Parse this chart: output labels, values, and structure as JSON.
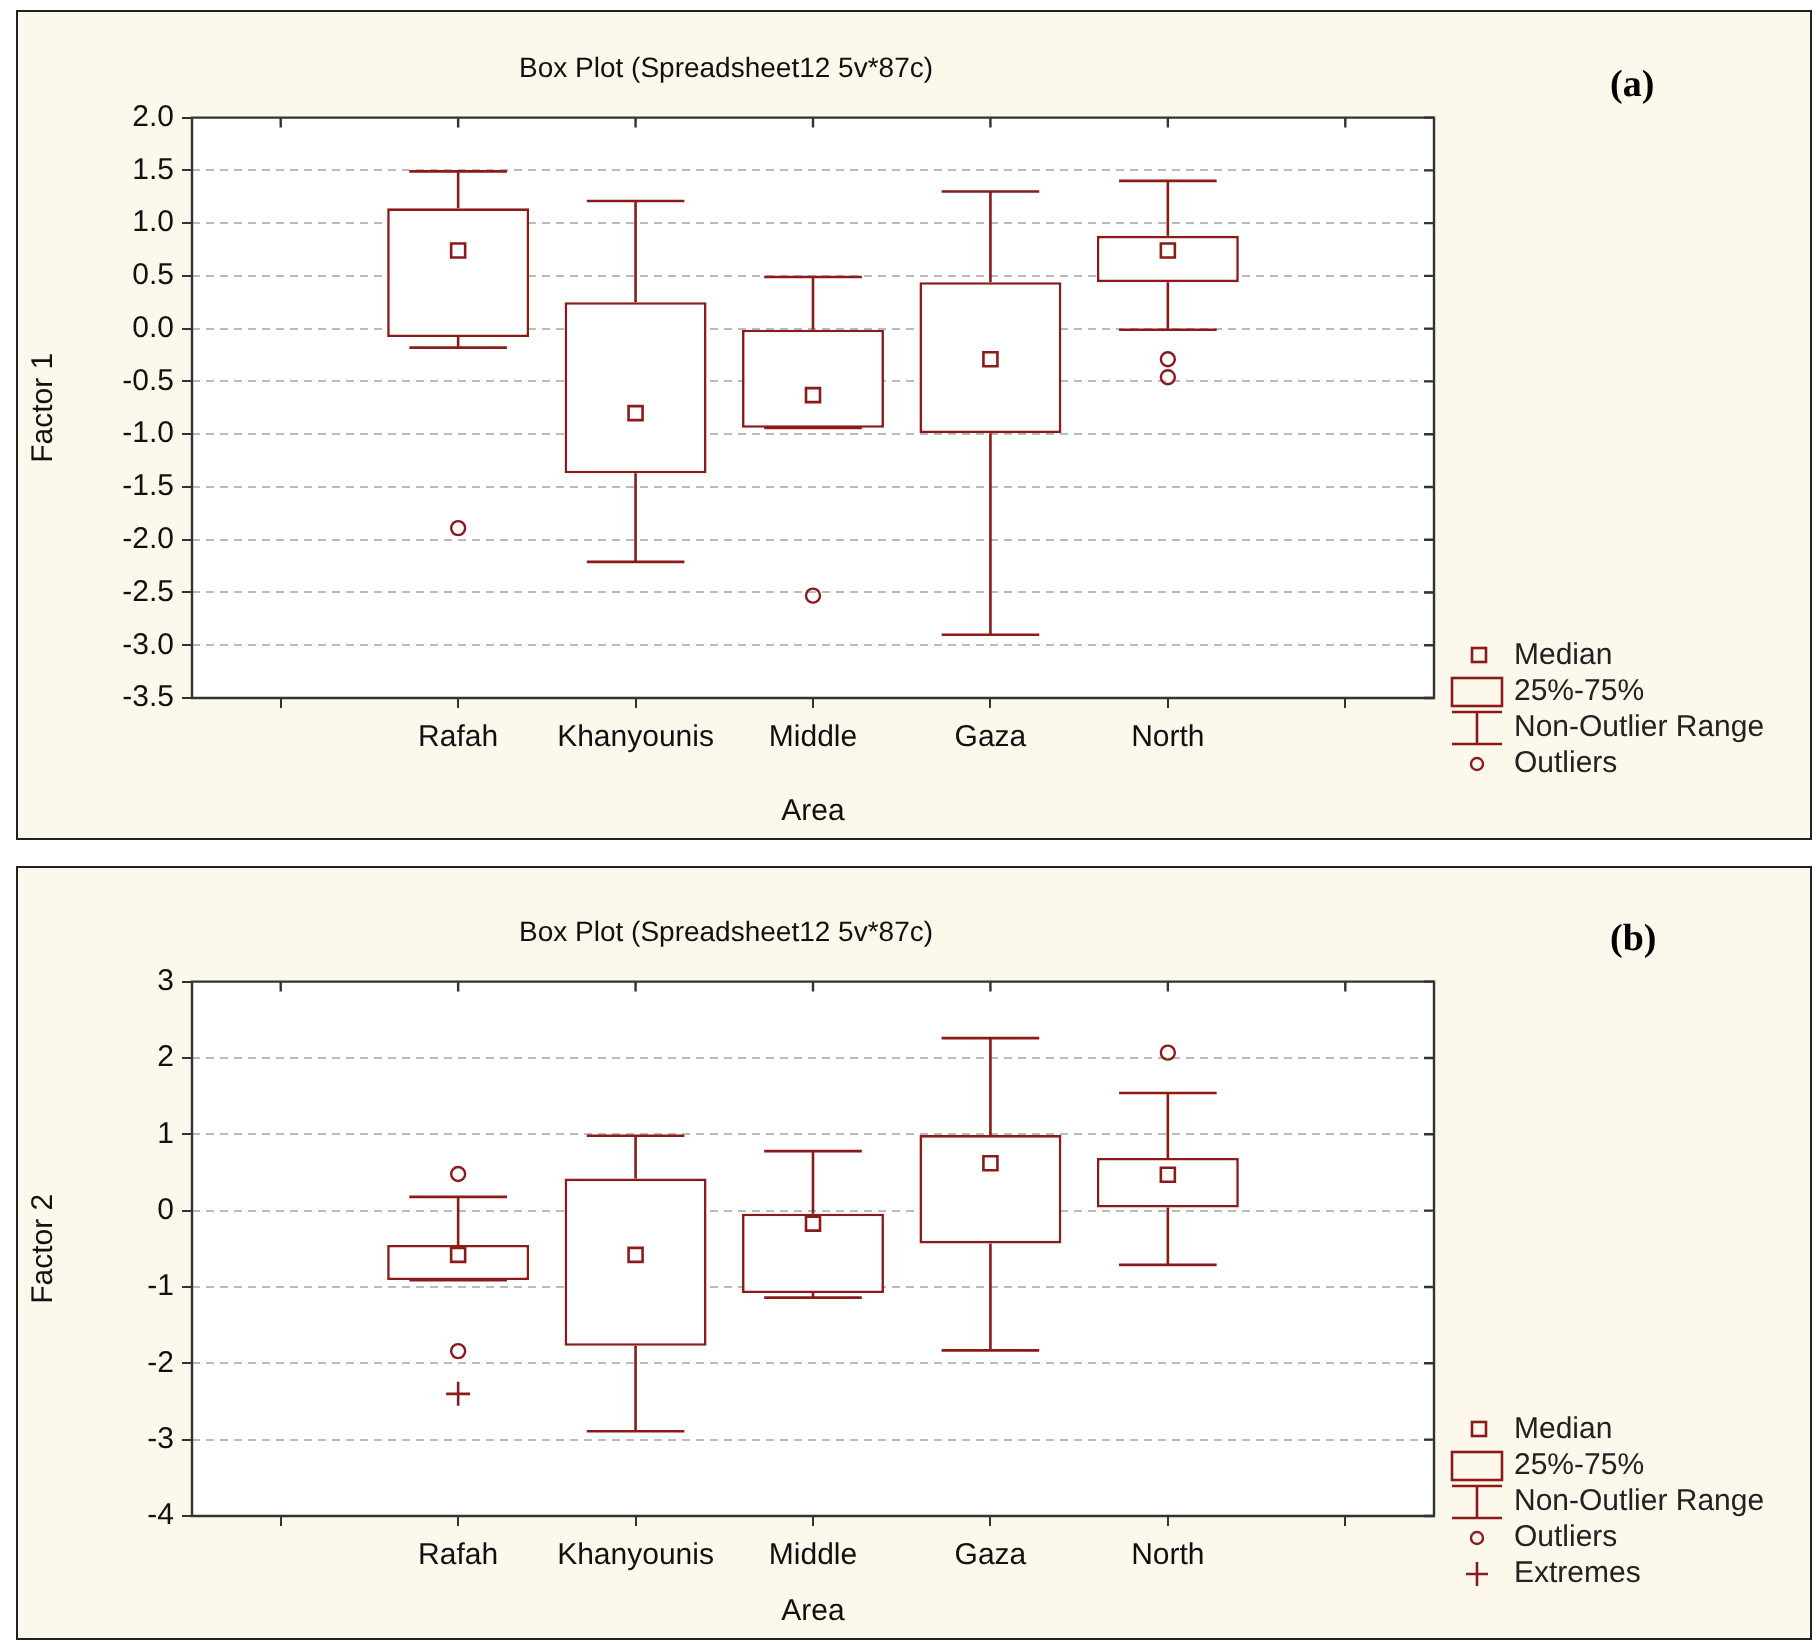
{
  "chart_data": [
    {
      "type": "box",
      "title": "Box Plot (Spreadsheet12 5v*87c)",
      "xlabel": "Area",
      "ylabel": "Factor 1",
      "color": "#8b1a1a",
      "grid": "y",
      "ylim": [
        -3.5,
        2
      ],
      "yticks": [
        {
          "value": -3.5,
          "label": "-3.5"
        },
        {
          "value": -3,
          "label": "-3.0"
        },
        {
          "value": -2.5,
          "label": "-2.5"
        },
        {
          "value": -2,
          "label": "-2.0"
        },
        {
          "value": -1.5,
          "label": "-1.5"
        },
        {
          "value": -1,
          "label": "-1.0"
        },
        {
          "value": -0.5,
          "label": "-0.5"
        },
        {
          "value": 0,
          "label": "0.0"
        },
        {
          "value": 0.5,
          "label": "0.5"
        },
        {
          "value": 1,
          "label": "1.0"
        },
        {
          "value": 1.5,
          "label": "1.5"
        },
        {
          "value": 2,
          "label": "2.0"
        }
      ],
      "categories": [
        null,
        "Rafah",
        "Khanyounis",
        "Middle",
        "Gaza",
        "North",
        null
      ],
      "boxes": [
        null,
        {
          "low": -0.18,
          "q1": -0.08,
          "median": 0.74,
          "q3": 1.14,
          "high": 1.49,
          "outliers": [
            -1.89
          ]
        },
        {
          "low": -2.21,
          "q1": -1.37,
          "median": -0.8,
          "q3": 0.25,
          "high": 1.21
        },
        {
          "low": -0.94,
          "q1": -0.94,
          "median": -0.63,
          "q3": -0.01,
          "high": 0.49,
          "outliers": [
            -2.53
          ]
        },
        {
          "low": -2.9,
          "q1": -0.99,
          "median": -0.29,
          "q3": 0.44,
          "high": 1.3
        },
        {
          "low": -0.01,
          "q1": 0.44,
          "median": 0.74,
          "q3": 0.88,
          "high": 1.4,
          "outliers": [
            -0.29,
            -0.46
          ]
        },
        null
      ],
      "annotations": [
        "(a)",
        "Median",
        "25%-75%",
        "Non-Outlier Range",
        "Outliers"
      ]
    },
    {
      "type": "box",
      "title": "Box Plot (Spreadsheet12 5v*87c)",
      "xlabel": "Area",
      "ylabel": "Factor 2",
      "color": "#8b1a1a",
      "grid": "y",
      "legend": "bottom right",
      "ylim": [
        -4,
        3
      ],
      "yticks": [
        -4,
        -3,
        -2,
        -1,
        0,
        1,
        2,
        3
      ],
      "categories": [
        null,
        "Rafah",
        "Khanyounis",
        "Middle",
        "Gaza",
        "North",
        null
      ],
      "boxes": [
        null,
        {
          "low": -0.91,
          "q1": -0.91,
          "median": -0.58,
          "q3": -0.45,
          "high": 0.18,
          "outliers": [
            0.48,
            -1.84
          ]
        },
        {
          "low": -2.89,
          "q1": -1.77,
          "median": -0.58,
          "q3": 0.42,
          "high": 0.98
        },
        {
          "low": -1.14,
          "q1": -1.08,
          "median": -0.17,
          "q3": -0.04,
          "high": 0.78
        },
        {
          "low": -1.83,
          "q1": -0.43,
          "median": 0.62,
          "q3": 0.99,
          "high": 2.26
        },
        {
          "low": -0.71,
          "q1": 0.04,
          "median": 0.47,
          "q3": 0.69,
          "high": 1.54,
          "outliers": [
            2.07
          ]
        },
        null
      ],
      "series": [
        {
          "type": "scatter",
          "name": "Extremes",
          "color": "#8b1a1a",
          "marker": "cross",
          "x": [
            "Rafah"
          ],
          "values": [
            -2.4
          ]
        }
      ],
      "annotations": [
        "(b)",
        "Median",
        "25%-75%",
        "Non-Outlier Range",
        "Outliers"
      ]
    }
  ]
}
